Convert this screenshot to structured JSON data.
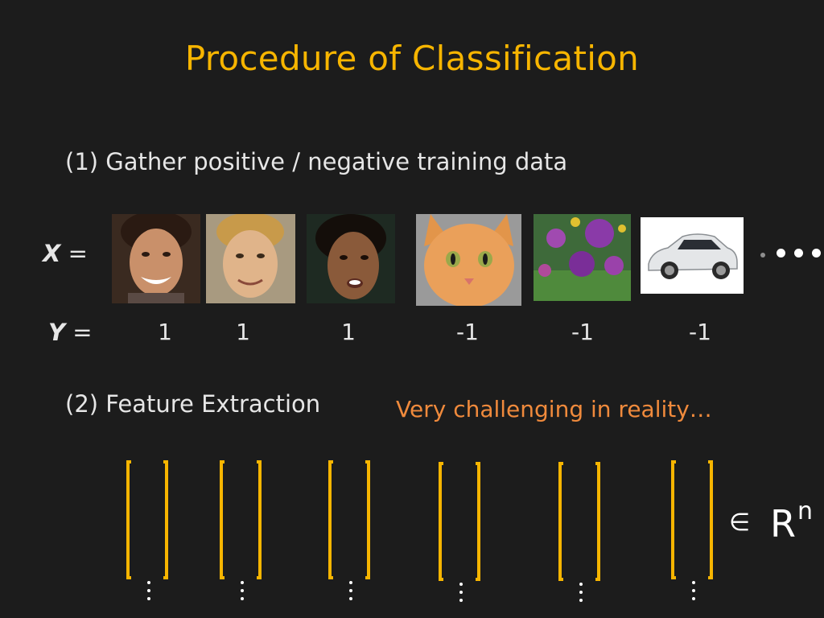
{
  "title": "Procedure of Classification",
  "step1": "(1) Gather positive / negative training data",
  "step2": "(2) Feature Extraction",
  "note": "Very challenging in reality…",
  "x_label": {
    "var": "X",
    "eq": " ="
  },
  "y_label": {
    "var": "Y",
    "eq": " ="
  },
  "samples": [
    {
      "icon": "face-image",
      "label": "1"
    },
    {
      "icon": "face-image",
      "label": "1"
    },
    {
      "icon": "face-image",
      "label": "1"
    },
    {
      "icon": "cat-image",
      "label": "-1"
    },
    {
      "icon": "flower-image",
      "label": "-1"
    },
    {
      "icon": "car-image",
      "label": "-1"
    }
  ],
  "membership": {
    "symbol": "∈",
    "space": "R",
    "exponent": "n"
  },
  "colors": {
    "accent": "#f7b500",
    "note": "#f08a3c",
    "background": "#1c1c1c"
  }
}
